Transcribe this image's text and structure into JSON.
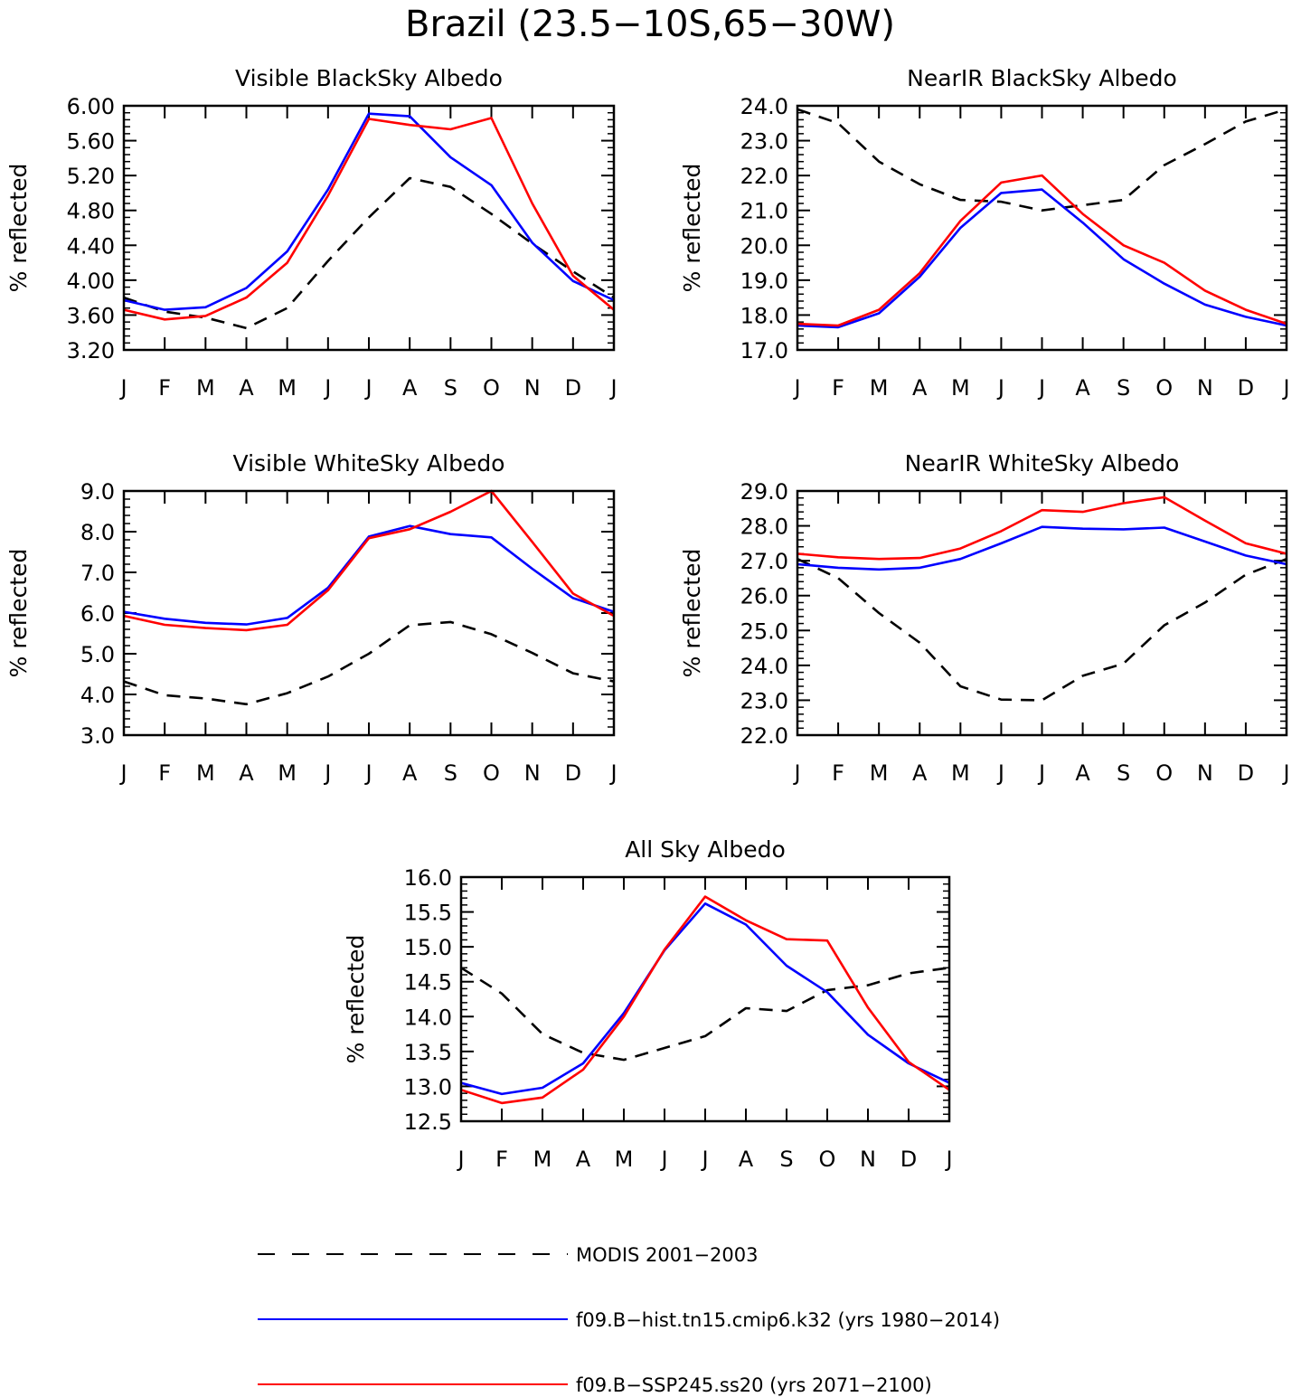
{
  "figure": {
    "title": "Brazil (23.5−10S,65−30W)"
  },
  "series_styles": {
    "MODIS 2001−2003": {
      "color": "#000000",
      "dash": "dashed"
    },
    "f09.B−hist.tn15.cmip6.k32 (yrs 1980−2014)": {
      "color": "#0000ff",
      "dash": "solid"
    },
    "f09.B−SSP245.ss20 (yrs 2071−2100)": {
      "color": "#ff0000",
      "dash": "solid"
    }
  },
  "legend": {
    "entries": [
      {
        "label": "MODIS 2001−2003",
        "color": "#000000",
        "dash": "dashed"
      },
      {
        "label": "f09.B−hist.tn15.cmip6.k32 (yrs 1980−2014)",
        "color": "#0000ff",
        "dash": "solid"
      },
      {
        "label": "f09.B−SSP245.ss20 (yrs 2071−2100)",
        "color": "#ff0000",
        "dash": "solid"
      }
    ]
  },
  "chart_data": [
    {
      "type": "line",
      "title": "Visible BlackSky Albedo",
      "xlabel": "",
      "ylabel": "% reflected",
      "categories": [
        "J",
        "F",
        "M",
        "A",
        "M",
        "J",
        "J",
        "A",
        "S",
        "O",
        "N",
        "D",
        "J"
      ],
      "ylim": [
        3.2,
        6.0
      ],
      "yticks": [
        "3.20",
        "3.60",
        "4.00",
        "4.40",
        "4.80",
        "5.20",
        "5.60",
        "6.00"
      ],
      "grid": false,
      "series": [
        {
          "name": "MODIS 2001−2003",
          "values": [
            3.8,
            3.64,
            3.57,
            3.45,
            3.68,
            4.22,
            4.72,
            5.17,
            5.07,
            4.76,
            4.42,
            4.1,
            3.8
          ]
        },
        {
          "name": "f09.B−hist.tn15.cmip6.k32 (yrs 1980−2014)",
          "values": [
            3.77,
            3.66,
            3.69,
            3.91,
            4.33,
            5.04,
            5.91,
            5.88,
            5.41,
            5.09,
            4.43,
            3.99,
            3.77
          ]
        },
        {
          "name": "f09.B−SSP245.ss20 (yrs 2071−2100)",
          "values": [
            3.66,
            3.55,
            3.59,
            3.8,
            4.2,
            4.97,
            5.85,
            5.78,
            5.73,
            5.86,
            4.88,
            4.05,
            3.66
          ]
        }
      ]
    },
    {
      "type": "line",
      "title": "NearIR BlackSky Albedo",
      "xlabel": "",
      "ylabel": "% reflected",
      "categories": [
        "J",
        "F",
        "M",
        "A",
        "M",
        "J",
        "J",
        "A",
        "S",
        "O",
        "N",
        "D",
        "J"
      ],
      "ylim": [
        17.0,
        24.0
      ],
      "yticks": [
        "17.0",
        "18.0",
        "19.0",
        "20.0",
        "21.0",
        "22.0",
        "23.0",
        "24.0"
      ],
      "grid": false,
      "series": [
        {
          "name": "MODIS 2001−2003",
          "values": [
            23.9,
            23.5,
            22.4,
            21.75,
            21.3,
            21.25,
            21.0,
            21.15,
            21.3,
            22.3,
            22.9,
            23.55,
            23.9
          ]
        },
        {
          "name": "f09.B−hist.tn15.cmip6.k32 (yrs 1980−2014)",
          "values": [
            17.7,
            17.65,
            18.05,
            19.1,
            20.5,
            21.5,
            21.6,
            20.65,
            19.6,
            18.9,
            18.3,
            17.95,
            17.7
          ]
        },
        {
          "name": "f09.B−SSP245.ss20 (yrs 2071−2100)",
          "values": [
            17.75,
            17.7,
            18.15,
            19.2,
            20.7,
            21.8,
            22.0,
            20.9,
            20.0,
            19.5,
            18.7,
            18.15,
            17.75
          ]
        }
      ]
    },
    {
      "type": "line",
      "title": "Visible WhiteSky Albedo",
      "xlabel": "",
      "ylabel": "% reflected",
      "categories": [
        "J",
        "F",
        "M",
        "A",
        "M",
        "J",
        "J",
        "A",
        "S",
        "O",
        "N",
        "D",
        "J"
      ],
      "ylim": [
        3.0,
        9.0
      ],
      "yticks": [
        "3.0",
        "4.0",
        "5.0",
        "6.0",
        "7.0",
        "8.0",
        "9.0"
      ],
      "grid": false,
      "series": [
        {
          "name": "MODIS 2001−2003",
          "values": [
            4.32,
            3.98,
            3.9,
            3.76,
            4.03,
            4.44,
            5.0,
            5.7,
            5.78,
            5.48,
            5.02,
            4.52,
            4.32
          ]
        },
        {
          "name": "f09.B−hist.tn15.cmip6.k32 (yrs 1980−2014)",
          "values": [
            6.03,
            5.86,
            5.76,
            5.72,
            5.88,
            6.62,
            7.88,
            8.14,
            7.94,
            7.86,
            7.09,
            6.37,
            6.03
          ]
        },
        {
          "name": "f09.B−SSP245.ss20 (yrs 2071−2100)",
          "values": [
            5.93,
            5.71,
            5.63,
            5.58,
            5.71,
            6.56,
            7.84,
            8.06,
            8.49,
            9.0,
            7.75,
            6.48,
            5.93
          ]
        }
      ]
    },
    {
      "type": "line",
      "title": "NearIR WhiteSky Albedo",
      "xlabel": "",
      "ylabel": "% reflected",
      "categories": [
        "J",
        "F",
        "M",
        "A",
        "M",
        "J",
        "J",
        "A",
        "S",
        "O",
        "N",
        "D",
        "J"
      ],
      "ylim": [
        22.0,
        29.0
      ],
      "yticks": [
        "22.0",
        "23.0",
        "24.0",
        "25.0",
        "26.0",
        "27.0",
        "28.0",
        "29.0"
      ],
      "grid": false,
      "series": [
        {
          "name": "MODIS 2001−2003",
          "values": [
            27.05,
            26.5,
            25.5,
            24.65,
            23.4,
            23.02,
            23.0,
            23.7,
            24.05,
            25.15,
            25.8,
            26.6,
            27.05
          ]
        },
        {
          "name": "f09.B−hist.tn15.cmip6.k32 (yrs 1980−2014)",
          "values": [
            26.9,
            26.8,
            26.75,
            26.8,
            27.05,
            27.5,
            27.97,
            27.92,
            27.9,
            27.95,
            27.55,
            27.15,
            26.9
          ]
        },
        {
          "name": "f09.B−SSP245.ss20 (yrs 2071−2100)",
          "values": [
            27.2,
            27.1,
            27.05,
            27.08,
            27.35,
            27.85,
            28.45,
            28.4,
            28.65,
            28.82,
            28.15,
            27.5,
            27.2
          ]
        }
      ]
    },
    {
      "type": "line",
      "title": "All Sky Albedo",
      "xlabel": "",
      "ylabel": "% reflected",
      "categories": [
        "J",
        "F",
        "M",
        "A",
        "M",
        "J",
        "J",
        "A",
        "S",
        "O",
        "N",
        "D",
        "J"
      ],
      "ylim": [
        12.5,
        16.0
      ],
      "yticks": [
        "12.5",
        "13.0",
        "13.5",
        "14.0",
        "14.5",
        "15.0",
        "15.5",
        "16.0"
      ],
      "grid": false,
      "series": [
        {
          "name": "MODIS 2001−2003",
          "values": [
            14.7,
            14.33,
            13.75,
            13.48,
            13.38,
            13.55,
            13.72,
            14.12,
            14.08,
            14.38,
            14.45,
            14.62,
            14.7
          ]
        },
        {
          "name": "f09.B−hist.tn15.cmip6.k32 (yrs 1980−2014)",
          "values": [
            13.05,
            12.89,
            12.98,
            13.33,
            14.05,
            14.95,
            15.62,
            15.32,
            14.73,
            14.35,
            13.74,
            13.33,
            13.05
          ]
        },
        {
          "name": "f09.B−SSP245.ss20 (yrs 2071−2100)",
          "values": [
            12.95,
            12.76,
            12.84,
            13.24,
            14.0,
            14.96,
            15.72,
            15.38,
            15.11,
            15.09,
            14.13,
            13.35,
            12.95
          ]
        }
      ]
    }
  ]
}
